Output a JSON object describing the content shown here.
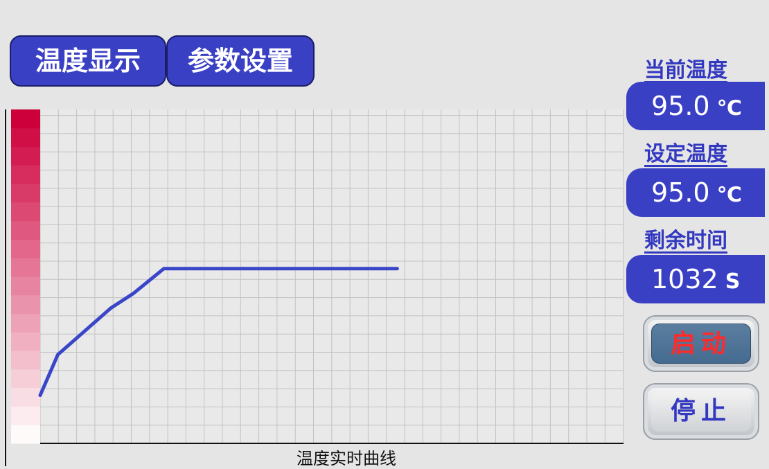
{
  "tabs": [
    {
      "label": "温度显示"
    },
    {
      "label": "参数设置"
    }
  ],
  "sidebar": {
    "current_temp": {
      "label": "当前温度",
      "value": "95.0",
      "unit": "℃"
    },
    "set_temp": {
      "label": "设定温度",
      "value": "95.0",
      "unit": "℃"
    },
    "remaining_time": {
      "label": "剩余时间",
      "value": "1032",
      "unit": "S"
    }
  },
  "buttons": {
    "start_label": "启动",
    "stop_label": "停止"
  },
  "colors": {
    "accent": "#3a40c4",
    "start_text": "#ff2a2a",
    "curve": "#3a46c8"
  },
  "chart_data": {
    "type": "line",
    "title": "温度实时曲线",
    "grid": true,
    "legend": "none",
    "color_scale": "pink-to-red vertical bar on left",
    "xlim": [
      0,
      33
    ],
    "ylim": [
      0,
      184
    ],
    "x": [
      0,
      1,
      4,
      5.3,
      7,
      10,
      13.3,
      20.2
    ],
    "y": [
      26.5,
      48.9,
      74.6,
      82.8,
      96.3,
      96.3,
      96.3,
      96.3
    ]
  }
}
